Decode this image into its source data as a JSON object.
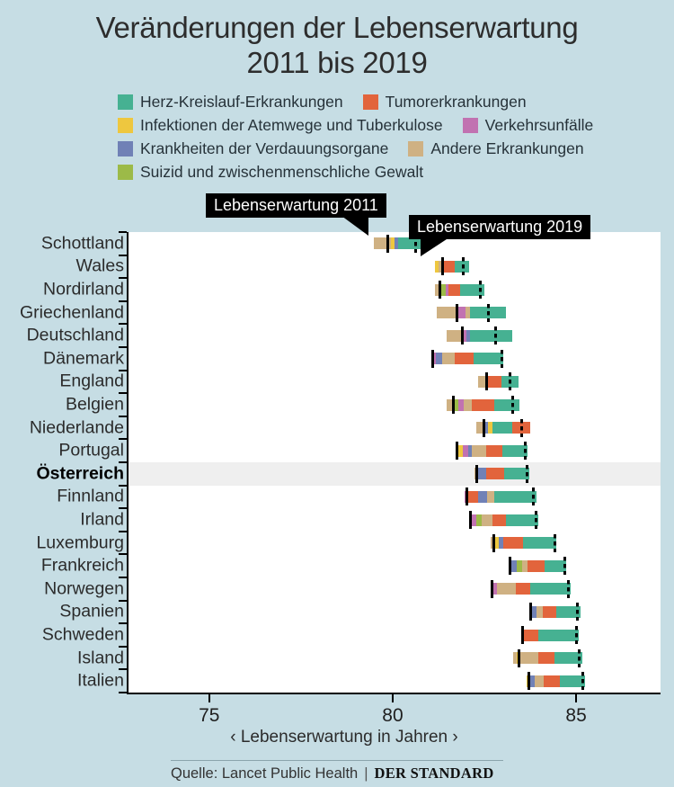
{
  "title": {
    "line1": "Veränderungen der Lebenserwartung",
    "line2": "2011 bis 2019"
  },
  "legend": {
    "rows": [
      [
        {
          "key": "herz",
          "label": "Herz-Kreislauf-Erkrankungen"
        },
        {
          "key": "tumor",
          "label": "Tumorerkrankungen"
        }
      ],
      [
        {
          "key": "infekt",
          "label": "Infektionen der Atemwege und Tuberkulose"
        },
        {
          "key": "verkehr",
          "label": "Verkehrsunfälle"
        }
      ],
      [
        {
          "key": "verdau",
          "label": "Krankheiten der Verdauungsorgane"
        },
        {
          "key": "andere",
          "label": "Andere Erkrankungen"
        }
      ],
      [
        {
          "key": "suizid",
          "label": "Suizid und zwischenmenschliche Gewalt"
        }
      ]
    ]
  },
  "colors": {
    "background": "#c6dde4",
    "plot_background": "#ffffff",
    "highlight_band": "#efefef",
    "herz": "#46b192",
    "tumor": "#e2643c",
    "infekt": "#eec73f",
    "verkehr": "#c172b1",
    "verdau": "#7081b6",
    "andere": "#cfb183",
    "suizid": "#9cba48"
  },
  "annotations": {
    "le2011": "Lebenserwartung 2011",
    "le2019": "Lebenserwartung 2019"
  },
  "axis": {
    "domain": [
      72.8,
      87.3
    ],
    "ticks": [
      75,
      80,
      85
    ],
    "label": "‹ Lebenserwartung in Jahren ›"
  },
  "source": {
    "prefix": "Quelle: Lancet Public Health",
    "separator": "|",
    "brand": "DER STANDARD"
  },
  "chart_data": {
    "type": "bar",
    "variant": "diverging-stacked-horizontal",
    "title": "Veränderungen der Lebenserwartung 2011 bis 2019",
    "xlabel": "Lebenserwartung in Jahren",
    "xlim": [
      72.8,
      87.3
    ],
    "x_ticks": [
      75,
      80,
      85
    ],
    "unit": "Jahre",
    "marker_legend": {
      "solid_line": "Lebenserwartung 2011",
      "dashed_line": "Lebenserwartung 2019"
    },
    "countries": [
      {
        "name": "Schottland",
        "highlight": false,
        "bar_start": 79.49,
        "le_2011": 79.87,
        "le_2019": 80.63,
        "segments": [
          {
            "cause": "andere",
            "years": 0.47
          },
          {
            "cause": "infekt",
            "years": 0.1
          },
          {
            "cause": "verdau",
            "years": 0.09
          },
          {
            "cause": "herz",
            "years": 0.76
          }
        ]
      },
      {
        "name": "Wales",
        "highlight": false,
        "bar_start": 81.14,
        "le_2011": 81.35,
        "le_2019": 81.92,
        "segments": [
          {
            "cause": "infekt",
            "years": 0.1
          },
          {
            "cause": "andere",
            "years": 0.14
          },
          {
            "cause": "tumor",
            "years": 0.31
          },
          {
            "cause": "herz",
            "years": 0.4
          }
        ]
      },
      {
        "name": "Nordirland",
        "highlight": false,
        "bar_start": 81.14,
        "le_2011": 81.29,
        "le_2019": 82.39,
        "segments": [
          {
            "cause": "andere",
            "years": 0.18
          },
          {
            "cause": "suizid",
            "years": 0.12
          },
          {
            "cause": "verkehr",
            "years": 0.07
          },
          {
            "cause": "tumor",
            "years": 0.33
          },
          {
            "cause": "herz",
            "years": 0.67
          }
        ]
      },
      {
        "name": "Griechenland",
        "highlight": false,
        "bar_start": 81.2,
        "le_2011": 81.76,
        "le_2019": 82.62,
        "segments": [
          {
            "cause": "andere",
            "years": 0.57
          },
          {
            "cause": "verkehr",
            "years": 0.22
          },
          {
            "cause": "andere",
            "years": 0.11
          },
          {
            "cause": "herz",
            "years": 0.99
          }
        ]
      },
      {
        "name": "Deutschland",
        "highlight": false,
        "bar_start": 81.48,
        "le_2011": 81.89,
        "le_2019": 82.8,
        "segments": [
          {
            "cause": "andere",
            "years": 0.43
          },
          {
            "cause": "verkehr",
            "years": 0.1
          },
          {
            "cause": "verdau",
            "years": 0.11
          },
          {
            "cause": "herz",
            "years": 1.15
          }
        ]
      },
      {
        "name": "Dänemark",
        "highlight": false,
        "bar_start": 81.07,
        "le_2011": 81.09,
        "le_2019": 82.97,
        "segments": [
          {
            "cause": "verkehr",
            "years": 0.11
          },
          {
            "cause": "verdau",
            "years": 0.18
          },
          {
            "cause": "andere",
            "years": 0.32
          },
          {
            "cause": "tumor",
            "years": 0.53
          },
          {
            "cause": "herz",
            "years": 0.8
          }
        ]
      },
      {
        "name": "England",
        "highlight": false,
        "bar_start": 82.33,
        "le_2011": 82.55,
        "le_2019": 83.19,
        "segments": [
          {
            "cause": "andere",
            "years": 0.27
          },
          {
            "cause": "tumor",
            "years": 0.36
          },
          {
            "cause": "herz",
            "years": 0.47
          }
        ]
      },
      {
        "name": "Belgien",
        "highlight": false,
        "bar_start": 81.48,
        "le_2011": 81.66,
        "le_2019": 83.27,
        "segments": [
          {
            "cause": "andere",
            "years": 0.18
          },
          {
            "cause": "suizid",
            "years": 0.12
          },
          {
            "cause": "verkehr",
            "years": 0.15
          },
          {
            "cause": "andere",
            "years": 0.22
          },
          {
            "cause": "tumor",
            "years": 0.61
          },
          {
            "cause": "herz",
            "years": 0.69
          }
        ]
      },
      {
        "name": "Niederlande",
        "highlight": false,
        "bar_start": 82.28,
        "le_2011": 82.49,
        "le_2019": 83.52,
        "segments": [
          {
            "cause": "andere",
            "years": 0.21
          },
          {
            "cause": "verdau",
            "years": 0.11
          },
          {
            "cause": "infekt",
            "years": 0.12
          },
          {
            "cause": "herz",
            "years": 0.53
          },
          {
            "cause": "tumor",
            "years": 0.49
          }
        ]
      },
      {
        "name": "Portugal",
        "highlight": false,
        "bar_start": 81.72,
        "le_2011": 81.76,
        "le_2019": 83.62,
        "segments": [
          {
            "cause": "andere",
            "years": 0.04
          },
          {
            "cause": "infekt",
            "years": 0.15
          },
          {
            "cause": "verkehr",
            "years": 0.16
          },
          {
            "cause": "verdau",
            "years": 0.08
          },
          {
            "cause": "andere",
            "years": 0.39
          },
          {
            "cause": "tumor",
            "years": 0.45
          },
          {
            "cause": "herz",
            "years": 0.69
          }
        ]
      },
      {
        "name": "Österreich",
        "highlight": true,
        "bar_start": 82.23,
        "le_2011": 82.28,
        "le_2019": 83.66,
        "segments": [
          {
            "cause": "andere",
            "years": 0.11
          },
          {
            "cause": "verdau",
            "years": 0.2
          },
          {
            "cause": "tumor",
            "years": 0.49
          },
          {
            "cause": "herz",
            "years": 0.69
          }
        ]
      },
      {
        "name": "Finnland",
        "highlight": false,
        "bar_start": 81.97,
        "le_2011": 82.03,
        "le_2019": 83.84,
        "segments": [
          {
            "cause": "verkehr",
            "years": 0.06
          },
          {
            "cause": "tumor",
            "years": 0.3
          },
          {
            "cause": "verdau",
            "years": 0.24
          },
          {
            "cause": "andere",
            "years": 0.2
          },
          {
            "cause": "herz",
            "years": 1.14
          }
        ]
      },
      {
        "name": "Irland",
        "highlight": false,
        "bar_start": 82.09,
        "le_2011": 82.13,
        "le_2019": 83.9,
        "segments": [
          {
            "cause": "andere",
            "years": 0.04
          },
          {
            "cause": "verkehr",
            "years": 0.15
          },
          {
            "cause": "suizid",
            "years": 0.14
          },
          {
            "cause": "andere",
            "years": 0.29
          },
          {
            "cause": "tumor",
            "years": 0.37
          },
          {
            "cause": "herz",
            "years": 0.89
          }
        ]
      },
      {
        "name": "Luxemburg",
        "highlight": false,
        "bar_start": 82.68,
        "le_2011": 82.76,
        "le_2019": 84.41,
        "segments": [
          {
            "cause": "andere",
            "years": 0.08
          },
          {
            "cause": "infekt",
            "years": 0.12
          },
          {
            "cause": "verdau",
            "years": 0.14
          },
          {
            "cause": "tumor",
            "years": 0.53
          },
          {
            "cause": "herz",
            "years": 0.92
          }
        ]
      },
      {
        "name": "Frankreich",
        "highlight": false,
        "bar_start": 83.15,
        "le_2011": 83.19,
        "le_2019": 84.68,
        "segments": [
          {
            "cause": "verkehr",
            "years": 0.04
          },
          {
            "cause": "verdau",
            "years": 0.18
          },
          {
            "cause": "suizid",
            "years": 0.15
          },
          {
            "cause": "andere",
            "years": 0.16
          },
          {
            "cause": "tumor",
            "years": 0.45
          },
          {
            "cause": "herz",
            "years": 0.61
          }
        ]
      },
      {
        "name": "Norwegen",
        "highlight": false,
        "bar_start": 82.66,
        "le_2011": 82.7,
        "le_2019": 84.8,
        "segments": [
          {
            "cause": "andere",
            "years": 0.04
          },
          {
            "cause": "verkehr",
            "years": 0.15
          },
          {
            "cause": "andere",
            "years": 0.5
          },
          {
            "cause": "tumor",
            "years": 0.41
          },
          {
            "cause": "herz",
            "years": 1.1
          }
        ]
      },
      {
        "name": "Spanien",
        "highlight": false,
        "bar_start": 83.72,
        "le_2011": 83.76,
        "le_2019": 85.04,
        "segments": [
          {
            "cause": "andere",
            "years": 0.04
          },
          {
            "cause": "verdau",
            "years": 0.15
          },
          {
            "cause": "andere",
            "years": 0.18
          },
          {
            "cause": "tumor",
            "years": 0.37
          },
          {
            "cause": "herz",
            "years": 0.65
          }
        ]
      },
      {
        "name": "Schweden",
        "highlight": false,
        "bar_start": 83.5,
        "le_2011": 83.53,
        "le_2019": 85.0,
        "segments": [
          {
            "cause": "andere",
            "years": 0.08
          },
          {
            "cause": "tumor",
            "years": 0.38
          },
          {
            "cause": "herz",
            "years": 1.1
          }
        ]
      },
      {
        "name": "Island",
        "highlight": false,
        "bar_start": 83.29,
        "le_2011": 83.45,
        "le_2019": 85.08,
        "segments": [
          {
            "cause": "andere",
            "years": 0.08
          },
          {
            "cause": "infekt",
            "years": 0.08
          },
          {
            "cause": "andere",
            "years": 0.51
          },
          {
            "cause": "tumor",
            "years": 0.45
          },
          {
            "cause": "herz",
            "years": 0.75
          }
        ]
      },
      {
        "name": "Italien",
        "highlight": false,
        "bar_start": 83.65,
        "le_2011": 83.71,
        "le_2019": 85.18,
        "segments": [
          {
            "cause": "infekt",
            "years": 0.06
          },
          {
            "cause": "verdau",
            "years": 0.16
          },
          {
            "cause": "andere",
            "years": 0.24
          },
          {
            "cause": "tumor",
            "years": 0.45
          },
          {
            "cause": "herz",
            "years": 0.69
          }
        ]
      }
    ]
  }
}
